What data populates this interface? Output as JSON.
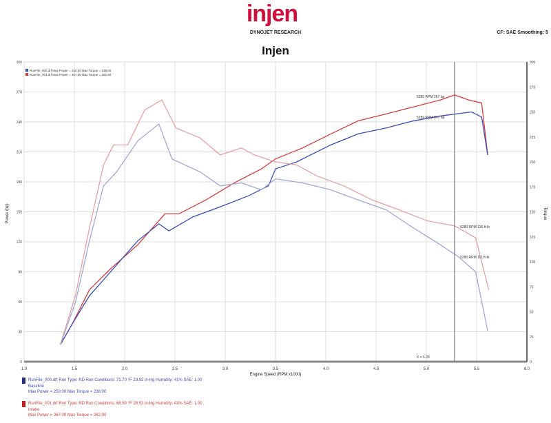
{
  "header": {
    "logo": "injen",
    "subtitle": "DYNOJET RESEARCH",
    "top_right": "CF: SAE  Smoothing: 5",
    "title": "Injen"
  },
  "legend": [
    {
      "text": "RunFile_000.drf Max Power = 250.00   Max Torque = 238.00",
      "color": "#3b4bb8"
    },
    {
      "text": "RunFile_001.drf Max Power = 267.00   Max Torque = 262.00",
      "color": "#d83a3a"
    }
  ],
  "annotations": {
    "red_power": "5280 RPM 267 hp",
    "blue_power": "5280 RPM 247 hp",
    "red_torque": "5280 RPM 136 ft-lb",
    "blue_torque": "5280 RPM 111 ft-lb",
    "cursor": "X = 5.28"
  },
  "footer": [
    {
      "line1": "RunFile_000.drf  Run Type: RD  Run Conditions: 71.70 °F  29.92 in-Hg  Humidity: 41%  SAE: 1.00",
      "line2": "Baseline",
      "line3": "Max Power = 250.00  Max Torque = 238.00",
      "color": "#3b4bb8"
    },
    {
      "line1": "RunFile_001.drf  Run Type: RD  Run Conditions: 68.50 °F  29.92 in-Hg  Humidity: 43%  SAE: 1.00",
      "line2": "Intake",
      "line3": "Max Power = 267.00  Max Torque = 262.00",
      "color": "#d83a3a"
    }
  ],
  "chart_data": {
    "type": "line",
    "xlabel": "Engine Speed (RPM x1000)",
    "ylabel": "Power (hp)",
    "y2label": "Torque",
    "xlim": [
      1.0,
      6.0
    ],
    "xticks": [
      1.0,
      1.5,
      2.0,
      2.5,
      3.0,
      3.5,
      4.0,
      4.5,
      5.0,
      5.5,
      6.0
    ],
    "ylim": [
      0,
      300
    ],
    "yticks": [
      0,
      30,
      60,
      90,
      120,
      150,
      180,
      210,
      240,
      270,
      300
    ],
    "y2lim": [
      0,
      300
    ],
    "y2ticks": [
      0,
      25,
      50,
      75,
      100,
      125,
      150,
      175,
      200,
      225,
      250,
      275,
      300
    ],
    "grid": true,
    "legend_position": "top-left",
    "cursor_x": 5.28,
    "series": [
      {
        "name": "RunFile_001 Power",
        "axis": "left",
        "color": "#d83a3a",
        "x": [
          1.36,
          1.48,
          1.65,
          1.86,
          2.13,
          2.4,
          2.54,
          2.81,
          3.09,
          3.36,
          3.5,
          3.77,
          4.05,
          4.32,
          4.6,
          4.87,
          5.14,
          5.28,
          5.42,
          5.55,
          5.61
        ],
        "y": [
          17,
          38,
          72,
          93,
          117,
          148,
          148,
          162,
          179,
          193,
          203,
          214,
          228,
          241,
          248,
          255,
          262,
          267,
          262,
          259,
          207
        ]
      },
      {
        "name": "RunFile_000 Power",
        "axis": "left",
        "color": "#3b4bb8",
        "x": [
          1.36,
          1.48,
          1.65,
          1.86,
          2.13,
          2.34,
          2.44,
          2.68,
          2.95,
          3.23,
          3.43,
          3.5,
          3.71,
          4.05,
          4.32,
          4.6,
          4.87,
          5.14,
          5.45,
          5.55,
          5.61
        ],
        "y": [
          17,
          38,
          66,
          90,
          121,
          138,
          131,
          145,
          155,
          166,
          176,
          193,
          200,
          217,
          228,
          234,
          241,
          246,
          250,
          245,
          207
        ]
      },
      {
        "name": "RunFile_001 Torque",
        "axis": "right",
        "color": "#e8a0a0",
        "x": [
          1.36,
          1.51,
          1.65,
          1.79,
          1.89,
          2.03,
          2.2,
          2.37,
          2.51,
          2.75,
          2.95,
          3.16,
          3.29,
          3.5,
          3.71,
          3.91,
          4.18,
          4.46,
          4.73,
          5.01,
          5.28,
          5.49,
          5.62
        ],
        "y": [
          17,
          66,
          134,
          197,
          217,
          217,
          252,
          262,
          234,
          224,
          207,
          214,
          207,
          200,
          197,
          186,
          176,
          162,
          152,
          141,
          136,
          124,
          72
        ]
      },
      {
        "name": "RunFile_000 Torque",
        "axis": "right",
        "color": "#a0a8d8",
        "x": [
          1.36,
          1.51,
          1.65,
          1.79,
          1.92,
          2.13,
          2.34,
          2.47,
          2.75,
          2.95,
          3.16,
          3.36,
          3.5,
          3.77,
          4.05,
          4.32,
          4.6,
          4.87,
          5.14,
          5.32,
          5.49,
          5.61
        ],
        "y": [
          17,
          59,
          121,
          176,
          190,
          221,
          238,
          203,
          190,
          176,
          179,
          172,
          183,
          179,
          172,
          162,
          152,
          134,
          117,
          105,
          90,
          31
        ]
      }
    ]
  }
}
